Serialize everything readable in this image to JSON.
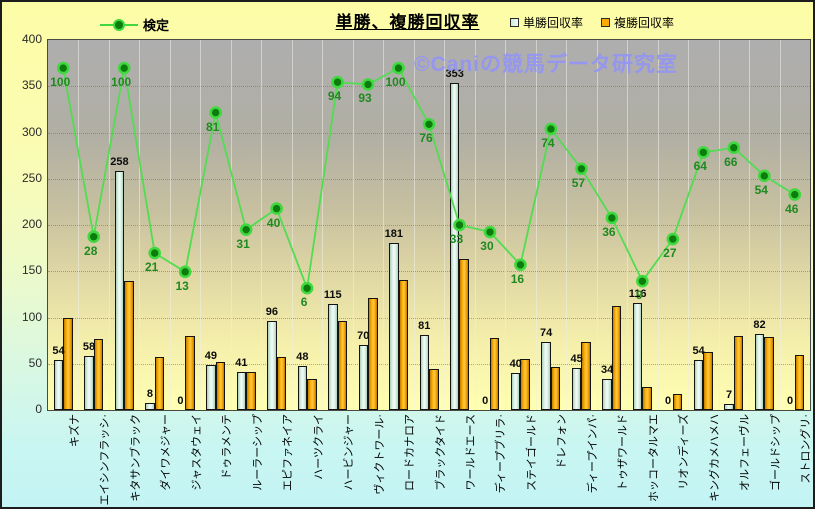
{
  "title": "単勝、複勝回収率",
  "legend": {
    "line_label": "検定",
    "bar1_label": "単勝回収率",
    "bar2_label": "複勝回収率"
  },
  "watermark": "©Caniの競馬データ研究室",
  "colors": {
    "line": "#52dc52",
    "dot_fill": "#0c7c0c",
    "dot_ring": "#3fd83f",
    "bar_tansho_fill": "#ddf1e6",
    "bar_fukusho_fill": "#ffaa00",
    "bar_label": "#0c0c0c",
    "line_label": "#1f8a1f",
    "watermark": "#9596ef"
  },
  "chart_data": {
    "type": "bar",
    "subtype": "grouped bars with overlaid line on hidden secondary axis",
    "title": "単勝、複勝回収率",
    "categories": [
      "キズナ",
      "エイシンフラッシ·",
      "キタサンブラック",
      "ダイワメジャー",
      "ジャスタウェイ",
      "ドゥラメンテ",
      "ルーラーシップ",
      "エピファネイア",
      "ハーツクライ",
      "ハービンジャー",
      "ヴィクトワール·",
      "ロードカナロア",
      "ブラックタイド",
      "ワールドエース",
      "ディープブリラ·",
      "ステイゴールド",
      "ドレフォン",
      "ディープインパ·",
      "トゥザワールド",
      "ホッコータルマエ",
      "リオンディーズ",
      "キングカメハメハ",
      "オルフェーヴル",
      "ゴールドシップ",
      "ストロングリ·"
    ],
    "series": [
      {
        "name": "単勝回収率",
        "type": "bar",
        "labels_shown": true,
        "values": [
          54,
          58,
          258,
          8,
          0,
          49,
          41,
          96,
          48,
          115,
          70,
          181,
          81,
          353,
          0,
          40,
          74,
          45,
          34,
          116,
          0,
          54,
          7,
          82,
          0
        ]
      },
      {
        "name": "複勝回収率",
        "type": "bar",
        "labels_shown": false,
        "values": [
          100,
          77,
          140,
          57,
          80,
          52,
          41,
          57,
          34,
          96,
          121,
          141,
          44,
          163,
          78,
          55,
          47,
          74,
          112,
          25,
          17,
          63,
          80,
          79,
          60
        ],
        "note": "no data labels shown in chart; values estimated from bar heights"
      },
      {
        "name": "検定",
        "type": "line",
        "labels_shown": true,
        "axis": "secondary",
        "values": [
          100,
          28,
          100,
          21,
          13,
          81,
          31,
          40,
          6,
          94,
          93,
          100,
          76,
          33,
          30,
          16,
          74,
          57,
          36,
          9,
          27,
          64,
          66,
          54,
          46
        ]
      }
    ],
    "primary_axis": {
      "min": 0,
      "max": 400,
      "step": 50,
      "ticks": [
        "400",
        "350",
        "300",
        "250",
        "200",
        "150",
        "100",
        "50",
        "0"
      ]
    },
    "secondary_axis": {
      "min": -46,
      "max": 112,
      "hidden": true
    },
    "grid": true,
    "legend_position": "top"
  }
}
